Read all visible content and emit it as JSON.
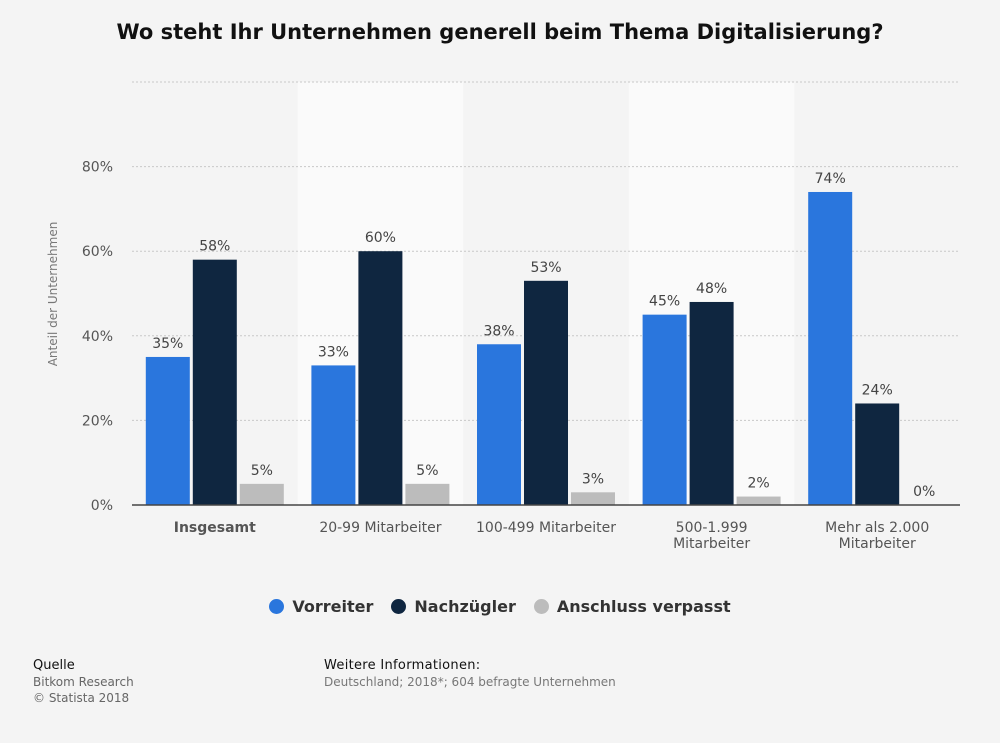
{
  "title": "Wo steht Ihr Unternehmen generell beim Thema Digitalisierung?",
  "colors": {
    "vorreiter": "#2a76dd",
    "nachzuegler": "#0f2640",
    "anschluss": "#bcbcbc"
  },
  "chart_data": {
    "type": "bar",
    "title": "Wo steht Ihr Unternehmen generell beim Thema Digitalisierung?",
    "xlabel": "",
    "ylabel": "Anteil der Unternehmen",
    "ylim": [
      0,
      100
    ],
    "yticks": [
      "0%",
      "20%",
      "40%",
      "60%",
      "80%"
    ],
    "ytick_values": [
      0,
      20,
      40,
      60,
      80
    ],
    "categories": [
      "Insgesamt",
      "20-99 Mitarbeiter",
      "100-499 Mitarbeiter",
      "500-1.999 Mitarbeiter",
      "Mehr als 2.000 Mitarbeiter"
    ],
    "category_lines": [
      [
        "Insgesamt"
      ],
      [
        "20-99 Mitarbeiter"
      ],
      [
        "100-499 Mitarbeiter"
      ],
      [
        "500-1.999",
        "Mitarbeiter"
      ],
      [
        "Mehr als 2.000",
        "Mitarbeiter"
      ]
    ],
    "series": [
      {
        "name": "Vorreiter",
        "values": [
          35,
          33,
          38,
          45,
          74
        ],
        "labels": [
          "35%",
          "33%",
          "38%",
          "45%",
          "74%"
        ]
      },
      {
        "name": "Nachzügler",
        "values": [
          58,
          60,
          53,
          48,
          24
        ],
        "labels": [
          "58%",
          "60%",
          "53%",
          "48%",
          "24%"
        ]
      },
      {
        "name": "Anschluss verpasst",
        "values": [
          5,
          5,
          3,
          2,
          0
        ],
        "labels": [
          "5%",
          "5%",
          "3%",
          "2%",
          "0%"
        ]
      }
    ],
    "grid": true,
    "legend": "bottom-center"
  },
  "source": {
    "heading": "Quelle",
    "lines": [
      "Bitkom Research",
      "© Statista 2018"
    ]
  },
  "info": {
    "heading": "Weitere Informationen:",
    "text": "Deutschland; 2018*; 604 befragte Unternehmen"
  }
}
